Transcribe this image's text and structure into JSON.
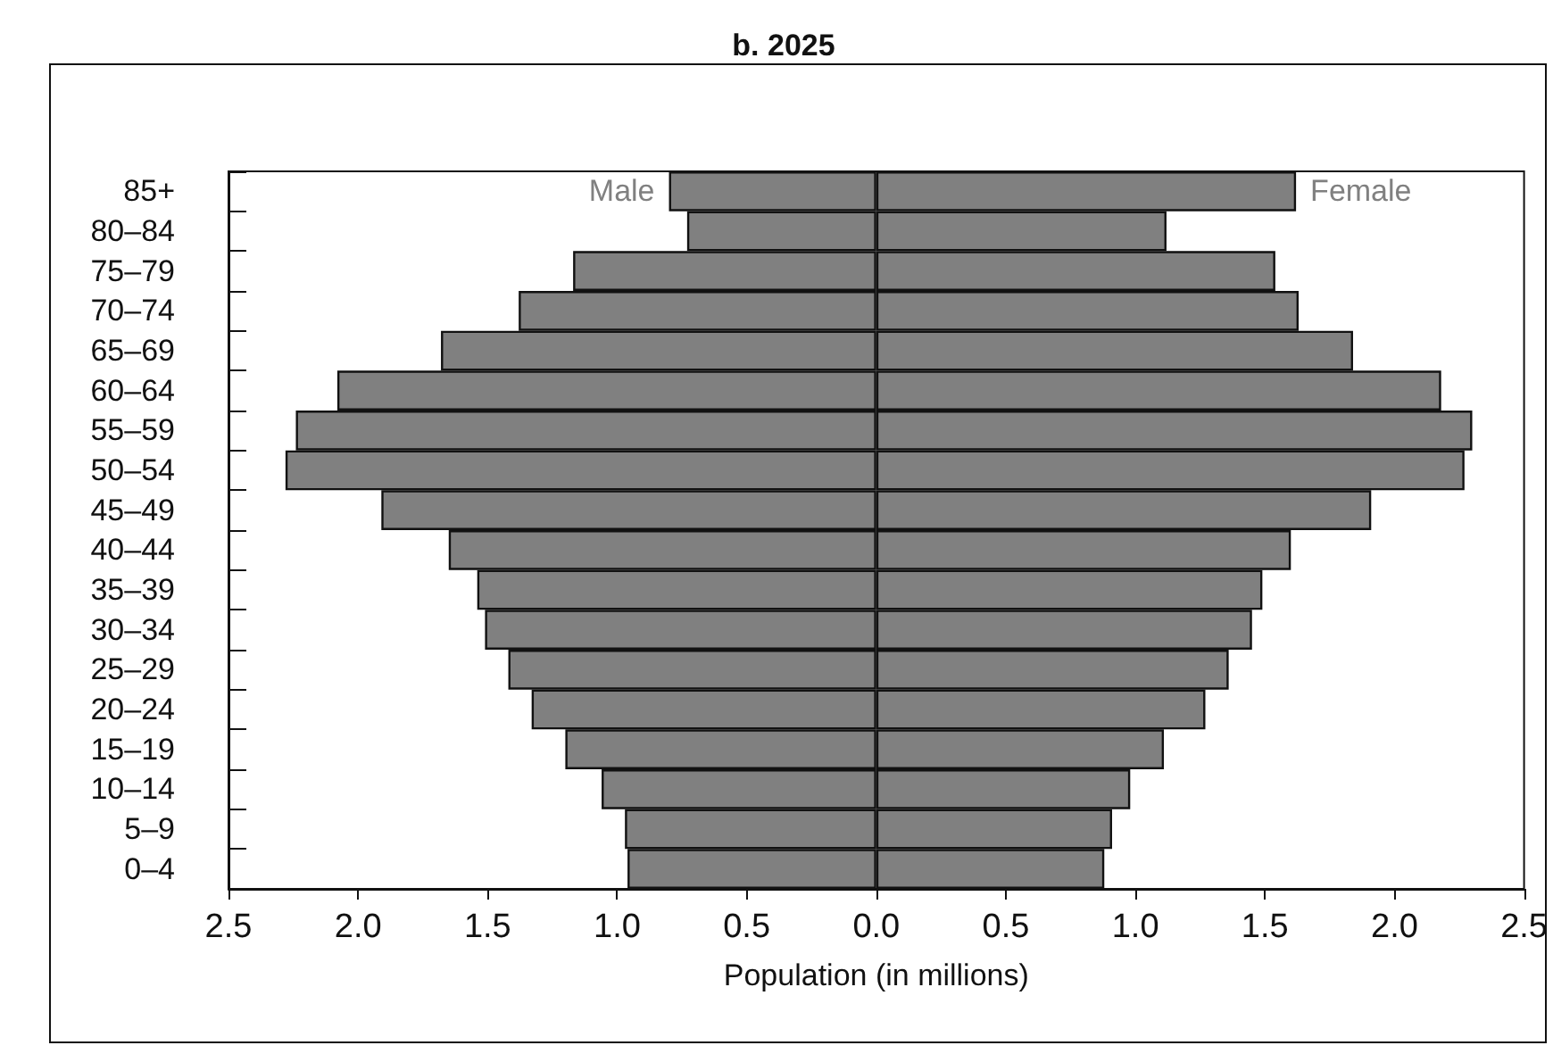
{
  "chart_data": {
    "type": "bar",
    "orientation": "horizontal",
    "title": "b. 2025",
    "xlabel": "Population (in millions)",
    "categories": [
      "85+",
      "80–84",
      "75–79",
      "70–74",
      "65–69",
      "60–64",
      "55–59",
      "50–54",
      "45–49",
      "40–44",
      "35–39",
      "30–34",
      "25–29",
      "20–24",
      "15–19",
      "10–14",
      "5–9",
      "0–4"
    ],
    "series": [
      {
        "name": "Male",
        "color": "#808080",
        "values": [
          -0.8,
          -0.73,
          -1.17,
          -1.38,
          -1.68,
          -2.08,
          -2.24,
          -2.28,
          -1.91,
          -1.65,
          -1.54,
          -1.51,
          -1.42,
          -1.33,
          -1.2,
          -1.06,
          -0.97,
          -0.96
        ]
      },
      {
        "name": "Female",
        "color": "#808080",
        "values": [
          1.62,
          1.12,
          1.54,
          1.63,
          1.84,
          2.18,
          2.3,
          2.27,
          1.91,
          1.6,
          1.49,
          1.45,
          1.36,
          1.27,
          1.11,
          0.98,
          0.91,
          0.88
        ]
      }
    ],
    "xlim": [
      -2.5,
      2.5
    ],
    "xticks": [
      {
        "value": -2.5,
        "label": "2.5"
      },
      {
        "value": -2,
        "label": "2.0"
      },
      {
        "value": -1.5,
        "label": "1.5"
      },
      {
        "value": -1,
        "label": "1.0"
      },
      {
        "value": -0.5,
        "label": "0.5"
      },
      {
        "value": 0,
        "label": "0.0"
      },
      {
        "value": 0.5,
        "label": "0.5"
      },
      {
        "value": 1,
        "label": "1.0"
      },
      {
        "value": 1.5,
        "label": "1.5"
      },
      {
        "value": 2,
        "label": "2.0"
      },
      {
        "value": 2.5,
        "label": "2.5"
      }
    ],
    "stacked": true,
    "legend": false
  }
}
